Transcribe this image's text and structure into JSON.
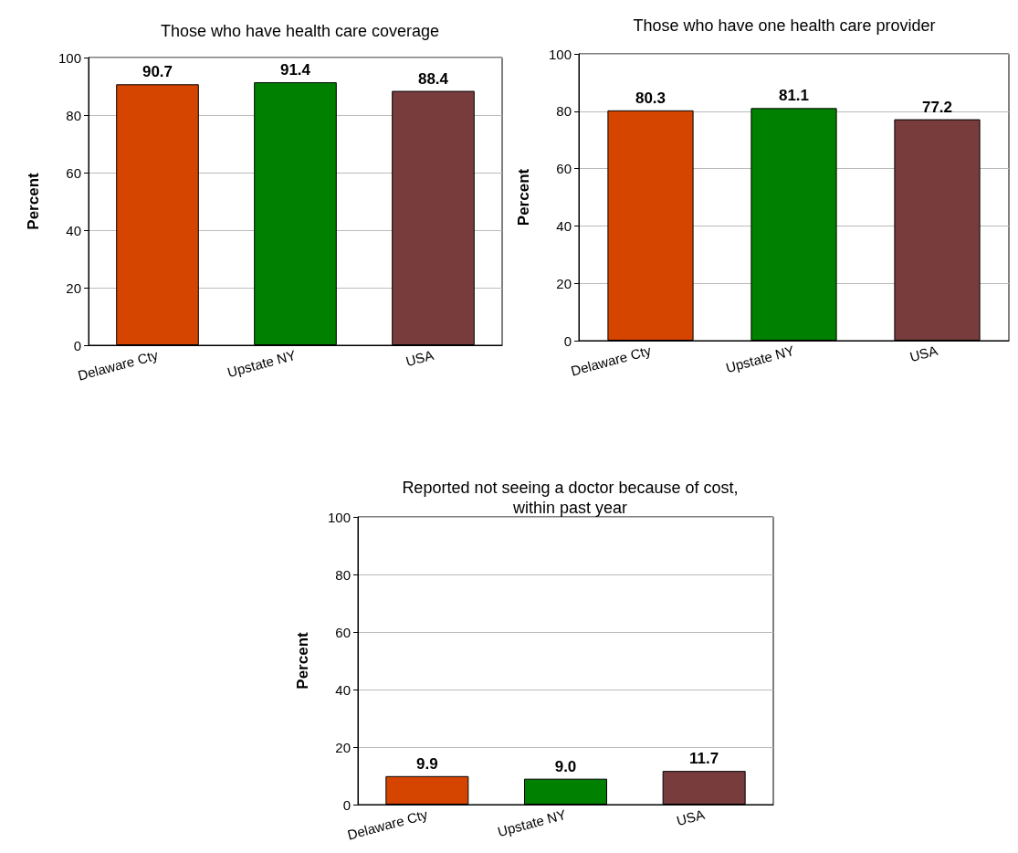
{
  "chart_data": [
    {
      "type": "bar",
      "title": "Those who have health care coverage",
      "ylabel": "Percent",
      "categories": [
        "Delaware Cty",
        "Upstate NY",
        "USA"
      ],
      "values": [
        90.7,
        91.4,
        88.4
      ],
      "colors": [
        "#d64500",
        "#008000",
        "#783c3c"
      ],
      "ylim": [
        0,
        100
      ],
      "yticks": [
        0,
        20,
        40,
        60,
        80,
        100
      ],
      "grid": "y",
      "data_labels": true
    },
    {
      "type": "bar",
      "title": "Those who have one health care provider",
      "ylabel": "Percent",
      "categories": [
        "Delaware Cty",
        "Upstate NY",
        "USA"
      ],
      "values": [
        80.3,
        81.1,
        77.2
      ],
      "colors": [
        "#d64500",
        "#008000",
        "#783c3c"
      ],
      "ylim": [
        0,
        100
      ],
      "yticks": [
        0,
        20,
        40,
        60,
        80,
        100
      ],
      "grid": "y",
      "data_labels": true
    },
    {
      "type": "bar",
      "title": "Reported not seeing a doctor because of cost,\nwithin past year",
      "ylabel": "Percent",
      "categories": [
        "Delaware Cty",
        "Upstate NY",
        "USA"
      ],
      "values": [
        9.9,
        9.0,
        11.7
      ],
      "value_labels": [
        "9.9",
        "9.0",
        "11.7"
      ],
      "colors": [
        "#d64500",
        "#008000",
        "#783c3c"
      ],
      "ylim": [
        0,
        100
      ],
      "yticks": [
        0,
        20,
        40,
        60,
        80,
        100
      ],
      "grid": "y"
    }
  ]
}
